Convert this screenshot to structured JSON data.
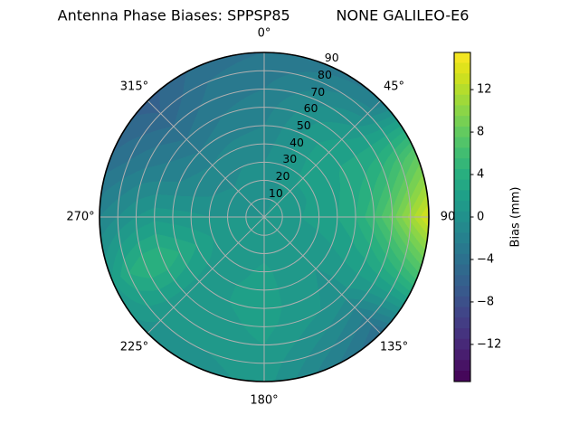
{
  "title": "Antenna Phase Biases: SPPSP85          NONE GALILEO-E6",
  "chart_data": {
    "type": "heatmap",
    "projection": "polar",
    "title": "Antenna Phase Biases: SPPSP85          NONE GALILEO-E6",
    "grid": true,
    "grid_color": "#b0b0b0",
    "outline_color": "#000000",
    "angular_ticks_deg": [
      0,
      45,
      90,
      135,
      180,
      225,
      270,
      315
    ],
    "angular_tick_labels": [
      "0°",
      "45°",
      "90",
      "135°",
      "180°",
      "225°",
      "270°",
      "315°"
    ],
    "radial_ticks": [
      10,
      20,
      30,
      40,
      50,
      60,
      70,
      80,
      90
    ],
    "radial_tick_labels": [
      "10",
      "20",
      "30",
      "40",
      "50",
      "60",
      "70",
      "80",
      "90"
    ],
    "radial_label_angle_deg": 22.5,
    "radial_max": 90,
    "colorbar": {
      "label": "Bias (mm)",
      "tick_values": [
        12,
        8,
        4,
        0,
        -4,
        -8,
        -12
      ],
      "tick_labels": [
        "12",
        "8",
        "4",
        "0",
        "−4",
        "−8",
        "−12"
      ],
      "vmin": -15.5,
      "vmax": 15.5,
      "level_step": 1,
      "colormap": "viridis",
      "colormap_stops": [
        "#440154",
        "#48186a",
        "#472d7b",
        "#424086",
        "#3b528b",
        "#33638d",
        "#2c728e",
        "#26818e",
        "#21918c",
        "#1fa088",
        "#28ae80",
        "#3fbc73",
        "#5ec962",
        "#84d44b",
        "#addc30",
        "#d8e219",
        "#fde725"
      ]
    },
    "field": {
      "description": "bias_mm[i][j] sampled at azimuth_deg[i], zenith_deg[j]",
      "azimuth_deg": [
        0,
        22.5,
        45,
        67.5,
        90,
        112.5,
        135,
        157.5,
        180,
        202.5,
        225,
        247.5,
        270,
        292.5,
        315,
        337.5
      ],
      "zenith_deg": [
        0,
        10,
        20,
        30,
        40,
        50,
        60,
        70,
        80,
        90
      ],
      "bias_mm": [
        [
          0.5,
          0.3,
          0.0,
          -0.5,
          -1.0,
          -1.5,
          -2.0,
          -2.5,
          -3.0,
          -3.5
        ],
        [
          0.5,
          0.4,
          0.4,
          0.4,
          0.5,
          0.4,
          0.0,
          -1.0,
          -2.0,
          -3.0
        ],
        [
          0.5,
          0.8,
          1.2,
          1.8,
          2.2,
          2.2,
          1.5,
          0.5,
          -1.0,
          -2.5
        ],
        [
          0.5,
          0.8,
          1.2,
          1.8,
          2.2,
          2.8,
          3.5,
          4.5,
          6.0,
          7.5
        ],
        [
          0.5,
          1.0,
          1.5,
          2.0,
          2.5,
          3.5,
          5.5,
          8.0,
          11.0,
          13.8
        ],
        [
          0.5,
          0.8,
          1.0,
          1.2,
          1.5,
          2.0,
          2.5,
          3.5,
          4.5,
          5.5
        ],
        [
          0.5,
          0.5,
          0.5,
          0.5,
          0.5,
          0.2,
          0.0,
          -1.5,
          -3.0,
          -4.5
        ],
        [
          0.5,
          0.5,
          0.8,
          1.0,
          1.0,
          1.0,
          0.8,
          0.0,
          -1.0,
          -2.0
        ],
        [
          0.5,
          0.8,
          1.2,
          1.8,
          2.0,
          2.0,
          1.8,
          1.5,
          1.2,
          1.0
        ],
        [
          0.5,
          0.8,
          1.0,
          1.2,
          1.5,
          1.5,
          1.2,
          1.0,
          0.5,
          0.0
        ],
        [
          0.5,
          0.5,
          0.8,
          1.0,
          1.2,
          1.2,
          1.0,
          0.8,
          0.5,
          0.0
        ],
        [
          0.5,
          0.8,
          1.0,
          1.5,
          2.5,
          3.5,
          4.5,
          4.5,
          3.5,
          1.5
        ],
        [
          0.5,
          0.5,
          0.5,
          0.5,
          0.8,
          1.0,
          1.2,
          0.5,
          -0.5,
          -1.5
        ],
        [
          0.5,
          0.3,
          0.0,
          -0.5,
          -1.0,
          -1.5,
          -2.0,
          -2.5,
          -3.5,
          -4.5
        ],
        [
          0.5,
          0.2,
          -0.3,
          -1.0,
          -1.5,
          -2.5,
          -3.5,
          -4.5,
          -5.5,
          -6.0
        ],
        [
          0.5,
          0.2,
          0.0,
          -0.5,
          -1.0,
          -2.0,
          -2.5,
          -3.0,
          -3.5,
          -4.0
        ]
      ]
    }
  }
}
